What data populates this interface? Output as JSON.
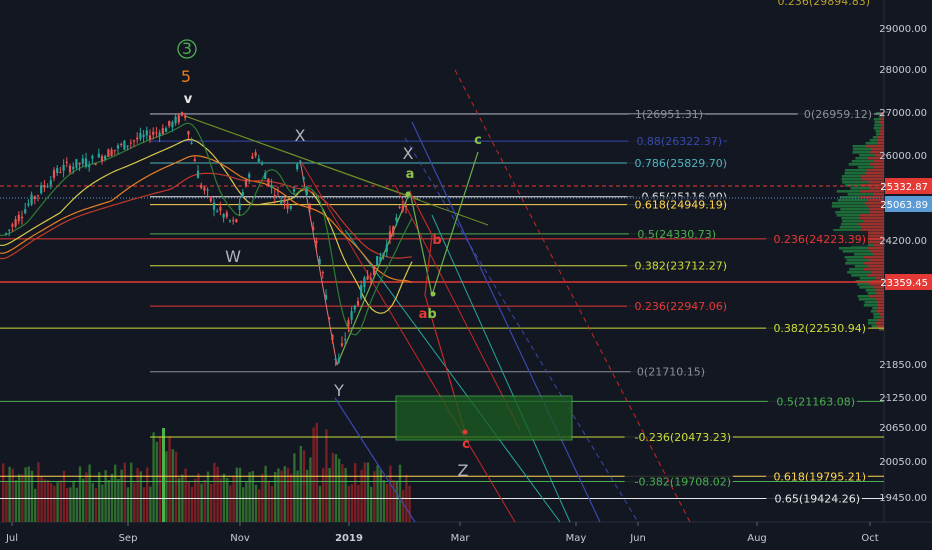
{
  "chart_data": {
    "type": "line",
    "ylim": [
      19200,
      29300
    ],
    "y_ticks": [
      "29000.00",
      "28000.00",
      "27000.00",
      "26000.00",
      "24200.00",
      "21850.00",
      "21250.00",
      "20650.00",
      "20050.00",
      "19450.00"
    ],
    "x_ticks": [
      "Jul",
      "Sep",
      "Nov",
      "2019",
      "Mar",
      "May",
      "Jun",
      "Aug",
      "Oct"
    ],
    "price_badges": [
      {
        "label": "25332.87",
        "color": "#e53935"
      },
      {
        "label": "25063.89",
        "color": "#5b9bd5"
      },
      {
        "label": "23359.45",
        "color": "#e53935"
      }
    ],
    "top_cut_label": "0.236(29894.83)",
    "fib_levels": [
      {
        "label": "1(26951.31)",
        "value": 26951,
        "color": "#8a8f99"
      },
      {
        "label": "0(26959.12)",
        "value": 26959,
        "color": "#8a8f99"
      },
      {
        "label": "0.88(26322.37)",
        "value": 26322,
        "color": "#3949ab"
      },
      {
        "label": "0.786(25829.70)",
        "value": 25830,
        "color": "#4fb3bf"
      },
      {
        "label": "0.65(25116.90)",
        "value": 25117,
        "color": "#e8e8e8"
      },
      {
        "label": "0.618(24949.19)",
        "value": 24949,
        "color": "#ffd54f"
      },
      {
        "label": "0.5(24330.73)",
        "value": 24331,
        "color": "#4caf50"
      },
      {
        "label": "0.236(24223.39)",
        "value": 24223,
        "color": "#e53935"
      },
      {
        "label": "0.382(23712.27)",
        "value": 23712,
        "color": "#cddc39"
      },
      {
        "label": "0.236(22947.06)",
        "value": 22947,
        "color": "#e53935"
      },
      {
        "label": "0.382(22530.94)",
        "value": 22531,
        "color": "#cddc39"
      },
      {
        "label": "0(21710.15)",
        "value": 21710,
        "color": "#8a8f99"
      },
      {
        "label": "0.5(21163.08)",
        "value": 21163,
        "color": "#4caf50"
      },
      {
        "label": "-0.236(20473.23)",
        "value": 20473,
        "color": "#cddc39"
      },
      {
        "label": "0.618(19795.21)",
        "value": 19795,
        "color": "#ffd54f"
      },
      {
        "label": "-0.382(19708.02)",
        "value": 19708,
        "color": "#4caf50"
      },
      {
        "label": "0.65(19424.26)",
        "value": 19424,
        "color": "#e8e8e8"
      }
    ],
    "wave_labels": [
      {
        "text": "3",
        "color": "#4caf50",
        "circled": true
      },
      {
        "text": "5",
        "color": "#e67e22"
      },
      {
        "text": "v",
        "color": "#e8e8e8"
      },
      {
        "text": "X",
        "color": "#b0b3ba"
      },
      {
        "text": "W",
        "color": "#b0b3ba"
      },
      {
        "text": "X",
        "color": "#b0b3ba"
      },
      {
        "text": "Y",
        "color": "#b0b3ba"
      },
      {
        "text": "Z",
        "color": "#b0b3ba"
      },
      {
        "text": "a",
        "color": "#8bc34a"
      },
      {
        "text": "b",
        "color": "#e53935"
      },
      {
        "text": "a",
        "color": "#e53935"
      },
      {
        "text": "b",
        "color": "#8bc34a"
      },
      {
        "text": "c",
        "color": "#8bc34a"
      },
      {
        "text": "c",
        "color": "#e53935"
      }
    ],
    "price_series": [
      {
        "date": "Jul",
        "close": 24300
      },
      {
        "date": "Aug",
        "close": 25500
      },
      {
        "date": "Sep",
        "close": 26100
      },
      {
        "date": "early Oct",
        "close": 26800
      },
      {
        "date": "mid Oct",
        "close": 25200
      },
      {
        "date": "Nov",
        "close": 25400
      },
      {
        "date": "early Dec",
        "close": 25800
      },
      {
        "date": "mid Dec",
        "close": 23500
      },
      {
        "date": "late Dec",
        "close": 21800
      },
      {
        "date": "2019",
        "close": 23400
      },
      {
        "date": "mid Jan",
        "close": 24300
      },
      {
        "date": "early Feb",
        "close": 25060
      }
    ]
  },
  "colors": {
    "background": "#131722",
    "up": "#26a69a",
    "down": "#ef5350"
  }
}
